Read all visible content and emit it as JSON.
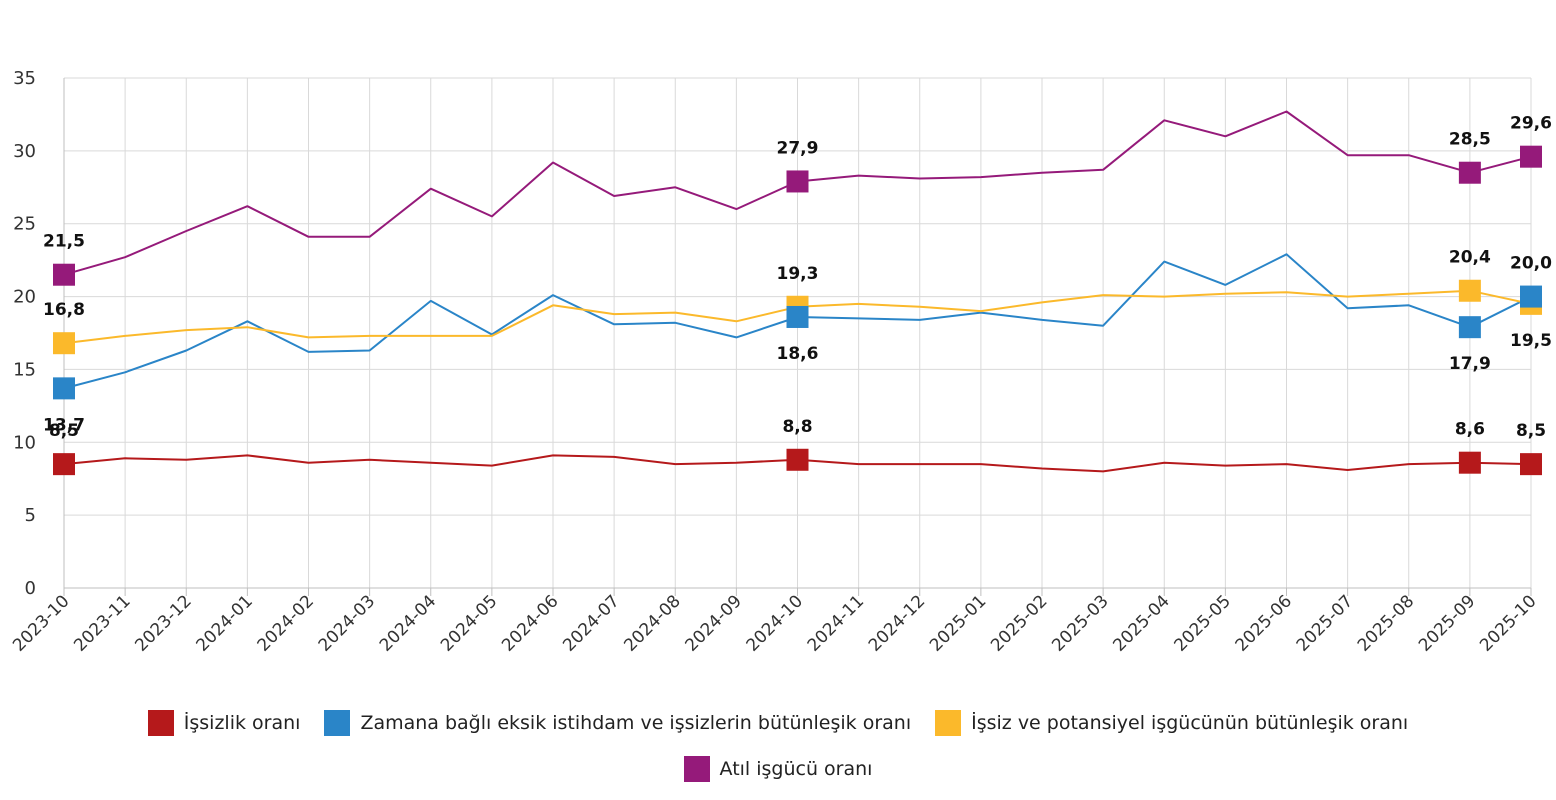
{
  "chart_data": {
    "type": "line",
    "x": [
      "2023-10",
      "2023-11",
      "2023-12",
      "2024-01",
      "2024-02",
      "2024-03",
      "2024-04",
      "2024-05",
      "2024-06",
      "2024-07",
      "2024-08",
      "2024-09",
      "2024-10",
      "2024-11",
      "2024-12",
      "2025-01",
      "2025-02",
      "2025-03",
      "2025-04",
      "2025-05",
      "2025-06",
      "2025-07",
      "2025-08",
      "2025-09",
      "2025-10"
    ],
    "ylim": [
      0,
      35
    ],
    "yticks": [
      "0",
      "5",
      "10",
      "15",
      "20",
      "25",
      "30",
      "35"
    ],
    "grid": true,
    "legend_position": "bottom",
    "series": [
      {
        "name": "İşsizlik oranı",
        "color": "#b5191b",
        "values": [
          8.5,
          8.9,
          8.8,
          9.1,
          8.6,
          8.8,
          8.6,
          8.4,
          9.1,
          9.0,
          8.5,
          8.6,
          8.8,
          8.5,
          8.5,
          8.5,
          8.2,
          8.0,
          8.6,
          8.4,
          8.5,
          8.1,
          8.5,
          8.6,
          8.5
        ],
        "markers": [
          0,
          12,
          23,
          24
        ],
        "labels": [
          "8,5",
          "8,8",
          "8,6",
          "8,5"
        ]
      },
      {
        "name": "Zamana bağlı eksik istihdam ve işsizlerin bütünleşik oranı",
        "color": "#2a85c8",
        "values": [
          13.7,
          14.8,
          16.3,
          18.3,
          16.2,
          16.3,
          19.7,
          17.4,
          20.1,
          18.1,
          18.2,
          17.2,
          18.6,
          18.5,
          18.4,
          18.9,
          18.4,
          18.0,
          22.4,
          20.8,
          22.9,
          19.2,
          19.4,
          17.9,
          20.0
        ],
        "markers": [
          0,
          12,
          23,
          24
        ],
        "labels": [
          "13,7",
          "18,6",
          "17,9",
          "20,0"
        ]
      },
      {
        "name": "İşsiz ve potansiyel işgücünün bütünleşik oranı",
        "color": "#fbb92b",
        "values": [
          16.8,
          17.3,
          17.7,
          17.9,
          17.2,
          17.3,
          17.3,
          17.3,
          19.4,
          18.8,
          18.9,
          18.3,
          19.3,
          19.5,
          19.3,
          19.0,
          19.6,
          20.1,
          20.0,
          20.2,
          20.3,
          20.0,
          20.2,
          20.4,
          19.5
        ],
        "markers": [
          0,
          12,
          23,
          24
        ],
        "labels": [
          "16,8",
          "19,3",
          "20,4",
          "19,5"
        ]
      },
      {
        "name": "Atıl işgücü oranı",
        "color": "#951a7a",
        "values": [
          21.5,
          22.7,
          24.5,
          26.2,
          24.1,
          24.1,
          27.4,
          25.5,
          29.2,
          26.9,
          27.5,
          26.0,
          27.9,
          28.3,
          28.1,
          28.2,
          28.5,
          28.7,
          32.1,
          31.0,
          32.7,
          29.7,
          29.7,
          28.5,
          29.6
        ],
        "markers": [
          0,
          12,
          23,
          24
        ],
        "labels": [
          "21,5",
          "27,9",
          "28,5",
          "29,6"
        ]
      }
    ]
  }
}
